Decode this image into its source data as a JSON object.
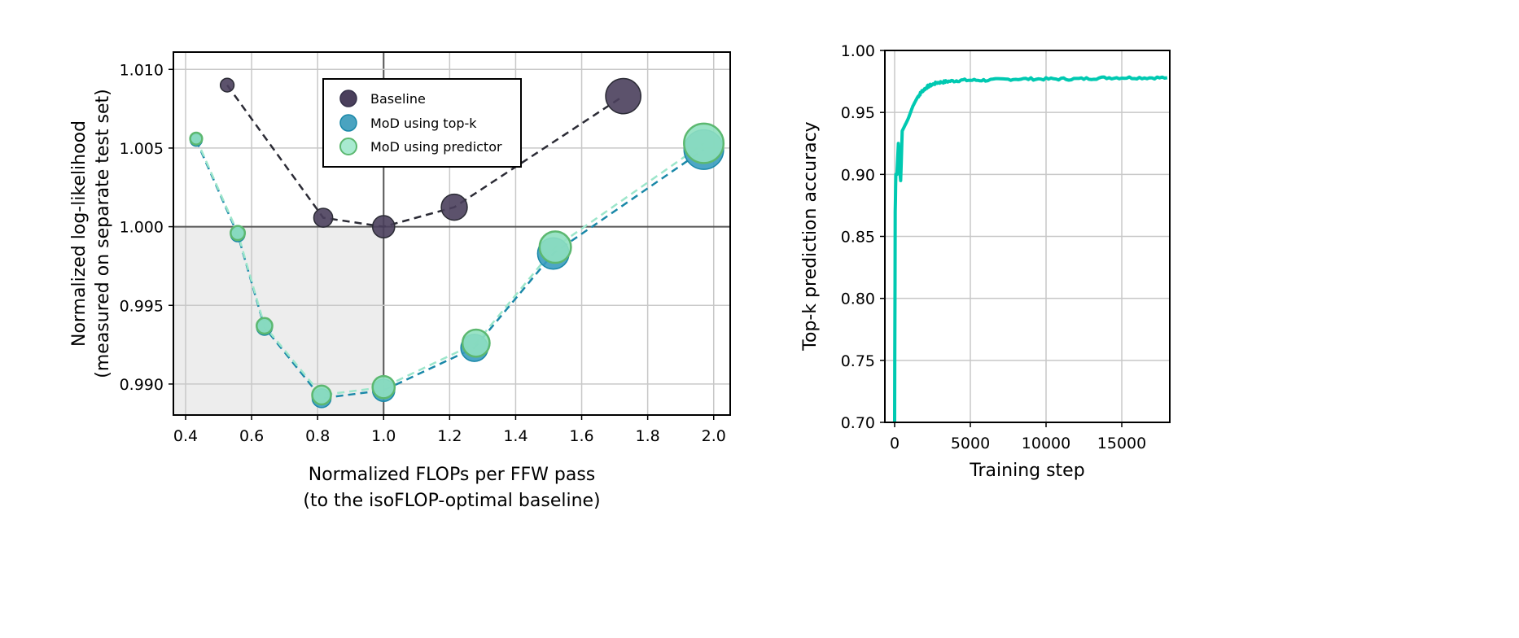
{
  "chart_data": [
    {
      "type": "scatter",
      "xlabel": "Normalized FLOPs per FFW pass",
      "xlabel2": "(to the isoFLOP-optimal baseline)",
      "ylabel": "Normalized log-likelihood",
      "ylabel2": "(measured on separate test set)",
      "xlim": [
        0.363,
        2.05
      ],
      "ylim": [
        0.98803,
        1.0111
      ],
      "xticks": [
        0.4,
        0.6,
        0.8,
        1.0,
        1.2,
        1.4,
        1.6,
        1.8,
        2.0
      ],
      "xtick_labels": [
        "0.4",
        "0.6",
        "0.8",
        "1.0",
        "1.2",
        "1.4",
        "1.6",
        "1.8",
        "2.0"
      ],
      "yticks": [
        0.99,
        0.995,
        1.0,
        1.005,
        1.01
      ],
      "ytick_labels": [
        "0.990",
        "0.995",
        "1.000",
        "1.005",
        "1.010"
      ],
      "grid": true,
      "legend_position": "top-center",
      "shaded_region": {
        "x": [
          0.363,
          1.0
        ],
        "y": [
          0.98803,
          1.0
        ]
      },
      "series": [
        {
          "name": "Baseline",
          "color": "#4a3f5c",
          "line_color": "#2b2b35",
          "x": [
            0.526,
            0.817,
            1.0,
            1.214,
            1.726
          ],
          "y": [
            1.009,
            1.00057,
            1.0,
            1.00124,
            1.0083
          ]
        },
        {
          "name": "MoD using top-k",
          "color": "#3a9cbf",
          "line_color": "#1a88a8",
          "x": [
            0.432,
            0.558,
            0.639,
            0.812,
            1.0,
            1.275,
            1.514,
            1.97
          ],
          "y": [
            1.0055,
            0.9995,
            0.9936,
            0.9891,
            0.9896,
            0.9923,
            0.9983,
            1.0049
          ]
        },
        {
          "name": "MoD using predictor",
          "color": "#8fe0c0",
          "edge": "#5cb870",
          "line_color": "#9de6cb",
          "x": [
            0.432,
            0.558,
            0.639,
            0.812,
            1.0,
            1.28,
            1.52,
            1.97
          ],
          "y": [
            1.0056,
            0.9996,
            0.9937,
            0.9893,
            0.9898,
            0.9926,
            0.9987,
            1.0053
          ]
        }
      ]
    },
    {
      "type": "line",
      "xlabel": "Training step",
      "ylabel": "Top-k prediction accuracy",
      "xlim": [
        -645,
        18170
      ],
      "ylim": [
        0.7,
        1.0
      ],
      "xticks": [
        0,
        5000,
        10000,
        15000
      ],
      "xtick_labels": [
        "0",
        "5000",
        "10000",
        "15000"
      ],
      "yticks": [
        0.7,
        0.75,
        0.8,
        0.85,
        0.9,
        0.95,
        1.0
      ],
      "ytick_labels": [
        "0.70",
        "0.75",
        "0.80",
        "0.85",
        "0.90",
        "0.95",
        "1.00"
      ],
      "grid": true,
      "series": [
        {
          "name": "Top-k prediction accuracy",
          "color": "#00c9b1",
          "x": [
            0,
            40,
            80,
            150,
            250,
            320,
            400,
            500,
            700,
            900,
            1200,
            1500,
            1800,
            2200,
            2800,
            3500,
            4500,
            6000,
            8000,
            10000,
            12000,
            14000,
            16000,
            18000
          ],
          "y": [
            0.7,
            0.87,
            0.9,
            0.9,
            0.925,
            0.905,
            0.895,
            0.935,
            0.94,
            0.945,
            0.955,
            0.962,
            0.967,
            0.971,
            0.974,
            0.975,
            0.976,
            0.976,
            0.977,
            0.977,
            0.977,
            0.978,
            0.978,
            0.978
          ]
        }
      ]
    }
  ]
}
